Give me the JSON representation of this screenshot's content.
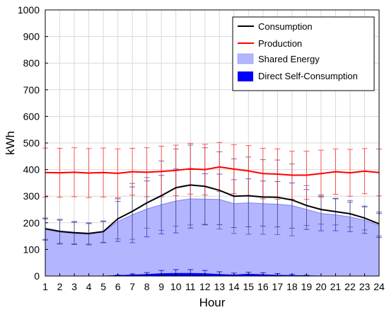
{
  "chart_data": {
    "type": "area",
    "xlabel": "Hour",
    "ylabel": "kWh",
    "title": "",
    "xlim": [
      1,
      24
    ],
    "ylim": [
      0,
      1000
    ],
    "x_ticks": [
      "1",
      "2",
      "3",
      "4",
      "5",
      "6",
      "7",
      "8",
      "9",
      "10",
      "11",
      "12",
      "13",
      "14",
      "15",
      "16",
      "17",
      "18",
      "19",
      "20",
      "21",
      "22",
      "23",
      "24"
    ],
    "y_ticks": [
      "0",
      "100",
      "200",
      "300",
      "400",
      "500",
      "600",
      "700",
      "800",
      "900",
      "1000"
    ],
    "grid": true,
    "legend_position": "top-right",
    "x": [
      1,
      2,
      3,
      4,
      5,
      6,
      7,
      8,
      9,
      10,
      11,
      12,
      13,
      14,
      15,
      16,
      17,
      18,
      19,
      20,
      21,
      22,
      23,
      24
    ],
    "series": [
      {
        "name": "Consumption",
        "kind": "line",
        "color": "#000000",
        "values": [
          178,
          168,
          163,
          160,
          167,
          215,
          243,
          275,
          302,
          332,
          342,
          337,
          322,
          300,
          302,
          297,
          296,
          286,
          265,
          250,
          242,
          234,
          218,
          196
        ],
        "error": [
          40,
          45,
          42,
          40,
          40,
          75,
          105,
          95,
          130,
          145,
          150,
          145,
          145,
          140,
          145,
          140,
          140,
          135,
          75,
          55,
          50,
          50,
          45,
          45
        ]
      },
      {
        "name": "Production",
        "kind": "line",
        "color": "#ff0000",
        "values": [
          389,
          388,
          390,
          387,
          389,
          386,
          392,
          390,
          393,
          397,
          403,
          400,
          410,
          402,
          395,
          385,
          383,
          379,
          379,
          385,
          392,
          388,
          394,
          389
        ],
        "error": [
          92,
          92,
          92,
          92,
          92,
          92,
          88,
          92,
          95,
          95,
          95,
          95,
          92,
          92,
          95,
          95,
          95,
          90,
          90,
          88,
          85,
          88,
          85,
          88
        ]
      },
      {
        "name": "Shared Energy",
        "kind": "area",
        "color": "#b3b6ff",
        "values": [
          175,
          165,
          160,
          157,
          165,
          205,
          230,
          252,
          268,
          282,
          290,
          289,
          288,
          272,
          275,
          272,
          270,
          265,
          250,
          235,
          230,
          222,
          210,
          190
        ],
        "error": [
          40,
          45,
          42,
          40,
          40,
          75,
          105,
          105,
          110,
          120,
          110,
          95,
          95,
          90,
          90,
          85,
          85,
          85,
          75,
          65,
          60,
          55,
          50,
          45
        ]
      },
      {
        "name": "Direct Self-Consumption",
        "kind": "area",
        "color": "#0000ff",
        "values": [
          0,
          0,
          0,
          0,
          0,
          2,
          4,
          6,
          9,
          10,
          10,
          9,
          6,
          4,
          7,
          5,
          3,
          2,
          1,
          0,
          0,
          0,
          0,
          0
        ],
        "error": [
          0,
          0,
          0,
          0,
          0,
          2,
          4,
          7,
          12,
          14,
          14,
          12,
          10,
          7,
          7,
          8,
          6,
          4,
          2,
          0,
          0,
          0,
          0,
          0
        ]
      }
    ]
  }
}
